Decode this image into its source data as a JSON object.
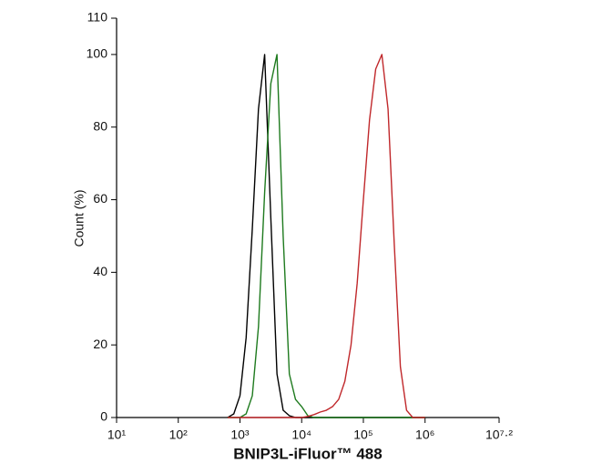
{
  "chart_data": {
    "type": "line",
    "x_label": "BNIP3L-iFluor™ 488",
    "y_label": "Count (%)",
    "log_x": true,
    "x": [
      631,
      794,
      1000,
      1259,
      1585,
      1995,
      2512,
      3162,
      3981,
      5012,
      6310,
      7943,
      10000,
      12589,
      15849,
      19953,
      25119,
      31623,
      39811,
      50119,
      63096,
      79433,
      100000,
      125893,
      158489,
      199526,
      251189,
      316228,
      398107,
      501187,
      630957,
      794328,
      1000000
    ],
    "series": [
      {
        "color": "#000000",
        "values": [
          0,
          1,
          6,
          22,
          52,
          85,
          100,
          55,
          12,
          2,
          0.5,
          0,
          0,
          0,
          0,
          0,
          0,
          0,
          0,
          0,
          0,
          0,
          0,
          0,
          0,
          0,
          0,
          0,
          0,
          0,
          0,
          0,
          0
        ]
      },
      {
        "color": "#1e7a1e",
        "values": [
          0,
          0,
          0,
          1,
          6,
          25,
          62,
          92,
          100,
          50,
          12,
          5,
          3,
          0.5,
          0,
          0,
          0,
          0,
          0,
          0,
          0,
          0,
          0,
          0,
          0,
          0,
          0,
          0,
          0,
          0,
          0,
          0,
          0
        ]
      },
      {
        "color": "#c0282b",
        "values": [
          0,
          0,
          0,
          0,
          0,
          0,
          0,
          0,
          0,
          0,
          0,
          0,
          0,
          0.3,
          0.8,
          1.5,
          2,
          3,
          5,
          10,
          20,
          37,
          60,
          82,
          96,
          100,
          85,
          48,
          14,
          2,
          0,
          0,
          0
        ]
      }
    ],
    "xlim": [
      10,
      15848932
    ],
    "xticks": [
      {
        "value": 10,
        "label": "10¹"
      },
      {
        "value": 100,
        "label": "10²"
      },
      {
        "value": 1000,
        "label": "10³"
      },
      {
        "value": 10000,
        "label": "10⁴"
      },
      {
        "value": 100000,
        "label": "10⁵"
      },
      {
        "value": 1000000,
        "label": "10⁶"
      },
      {
        "value": 15848932,
        "label": "10⁷·²"
      }
    ],
    "ylim": [
      0,
      110
    ],
    "yticks": [
      0,
      20,
      40,
      60,
      80,
      100,
      110
    ]
  }
}
